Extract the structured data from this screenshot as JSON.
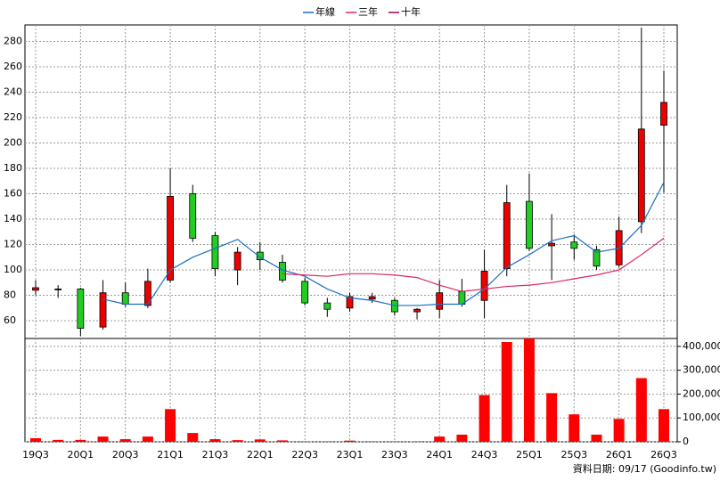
{
  "chart_data": {
    "type": "candlestick",
    "categories": [
      "19Q3",
      null,
      "20Q1",
      null,
      "20Q3",
      null,
      "21Q1",
      null,
      "21Q3",
      null,
      "22Q1",
      null,
      "22Q3",
      null,
      "23Q1",
      null,
      "23Q3",
      null,
      "24Q1",
      null,
      "24Q3",
      null,
      "25Q1",
      null,
      "25Q3",
      null,
      "26Q1",
      null,
      "26Q3"
    ],
    "open": [
      84,
      85,
      85,
      55,
      82,
      72,
      92,
      160,
      127,
      100,
      114,
      106,
      91,
      74,
      70,
      77,
      76,
      67,
      69,
      83,
      76,
      101,
      154,
      119,
      122,
      116,
      104,
      138,
      214
    ],
    "high": [
      92,
      88,
      86,
      92,
      90,
      101,
      180,
      167,
      130,
      118,
      122,
      112,
      94,
      78,
      82,
      82,
      78,
      70,
      92,
      93,
      116,
      167,
      176,
      144,
      128,
      119,
      142,
      291,
      257
    ],
    "low": [
      80,
      78,
      48,
      53,
      71,
      70,
      90,
      122,
      95,
      88,
      100,
      90,
      72,
      63,
      67,
      74,
      64,
      61,
      62,
      71,
      62,
      95,
      115,
      92,
      108,
      100,
      102,
      129,
      161
    ],
    "close": [
      86,
      85,
      54,
      82,
      73,
      91,
      158,
      125,
      101,
      114,
      108,
      92,
      74,
      69,
      79,
      79,
      67,
      69,
      82,
      73,
      99,
      153,
      117,
      121,
      117,
      103,
      131,
      211,
      232
    ],
    "up_color": "#ee0000",
    "down_color": "#22cc22",
    "series": [
      {
        "name": "年線",
        "color": "#1a6fc4",
        "values": [
          null,
          null,
          null,
          77,
          73,
          73,
          100,
          110,
          117,
          124,
          110,
          100,
          95,
          85,
          78,
          76,
          72,
          72,
          73,
          73,
          85,
          102,
          112,
          123,
          127,
          114,
          117,
          135,
          169
        ]
      },
      {
        "name": "三年",
        "color": "#e0245e",
        "values": [
          null,
          null,
          null,
          null,
          null,
          null,
          null,
          null,
          null,
          null,
          null,
          97,
          96,
          95,
          97,
          97,
          96,
          94,
          88,
          83,
          85,
          87,
          88,
          90,
          93,
          96,
          100,
          112,
          125
        ]
      },
      {
        "name": "十年",
        "color": "#a0005a",
        "values": [
          null,
          null,
          null,
          null,
          null,
          null,
          null,
          null,
          null,
          null,
          null,
          null,
          null,
          null,
          null,
          null,
          null,
          null,
          null,
          null,
          null,
          null,
          null,
          null,
          null,
          null,
          null,
          null,
          null
        ]
      }
    ],
    "ylim": [
      46,
      293
    ],
    "yticks": [
      60,
      80,
      100,
      120,
      140,
      160,
      180,
      200,
      220,
      240,
      260,
      280
    ],
    "volume": {
      "color": "#ff0000",
      "values": [
        15000,
        8000,
        8000,
        22000,
        11000,
        22000,
        137000,
        37000,
        11000,
        7000,
        10000,
        6000,
        2000,
        2000,
        5000,
        2000,
        2000,
        2000,
        22000,
        30000,
        196000,
        418000,
        433000,
        204000,
        115000,
        30000,
        96000,
        267000,
        137000
      ],
      "ylim": [
        0,
        433000
      ],
      "yticks": [
        0,
        {
          "value": 100000,
          "label": "100,000"
        },
        {
          "value": 200000,
          "label": "200,000"
        },
        {
          "value": 300000,
          "label": "300,000"
        },
        {
          "value": 400000,
          "label": "400,000"
        }
      ]
    },
    "grid": true,
    "annotation": "資料日期: 09/17  (Goodinfo.tw)"
  }
}
